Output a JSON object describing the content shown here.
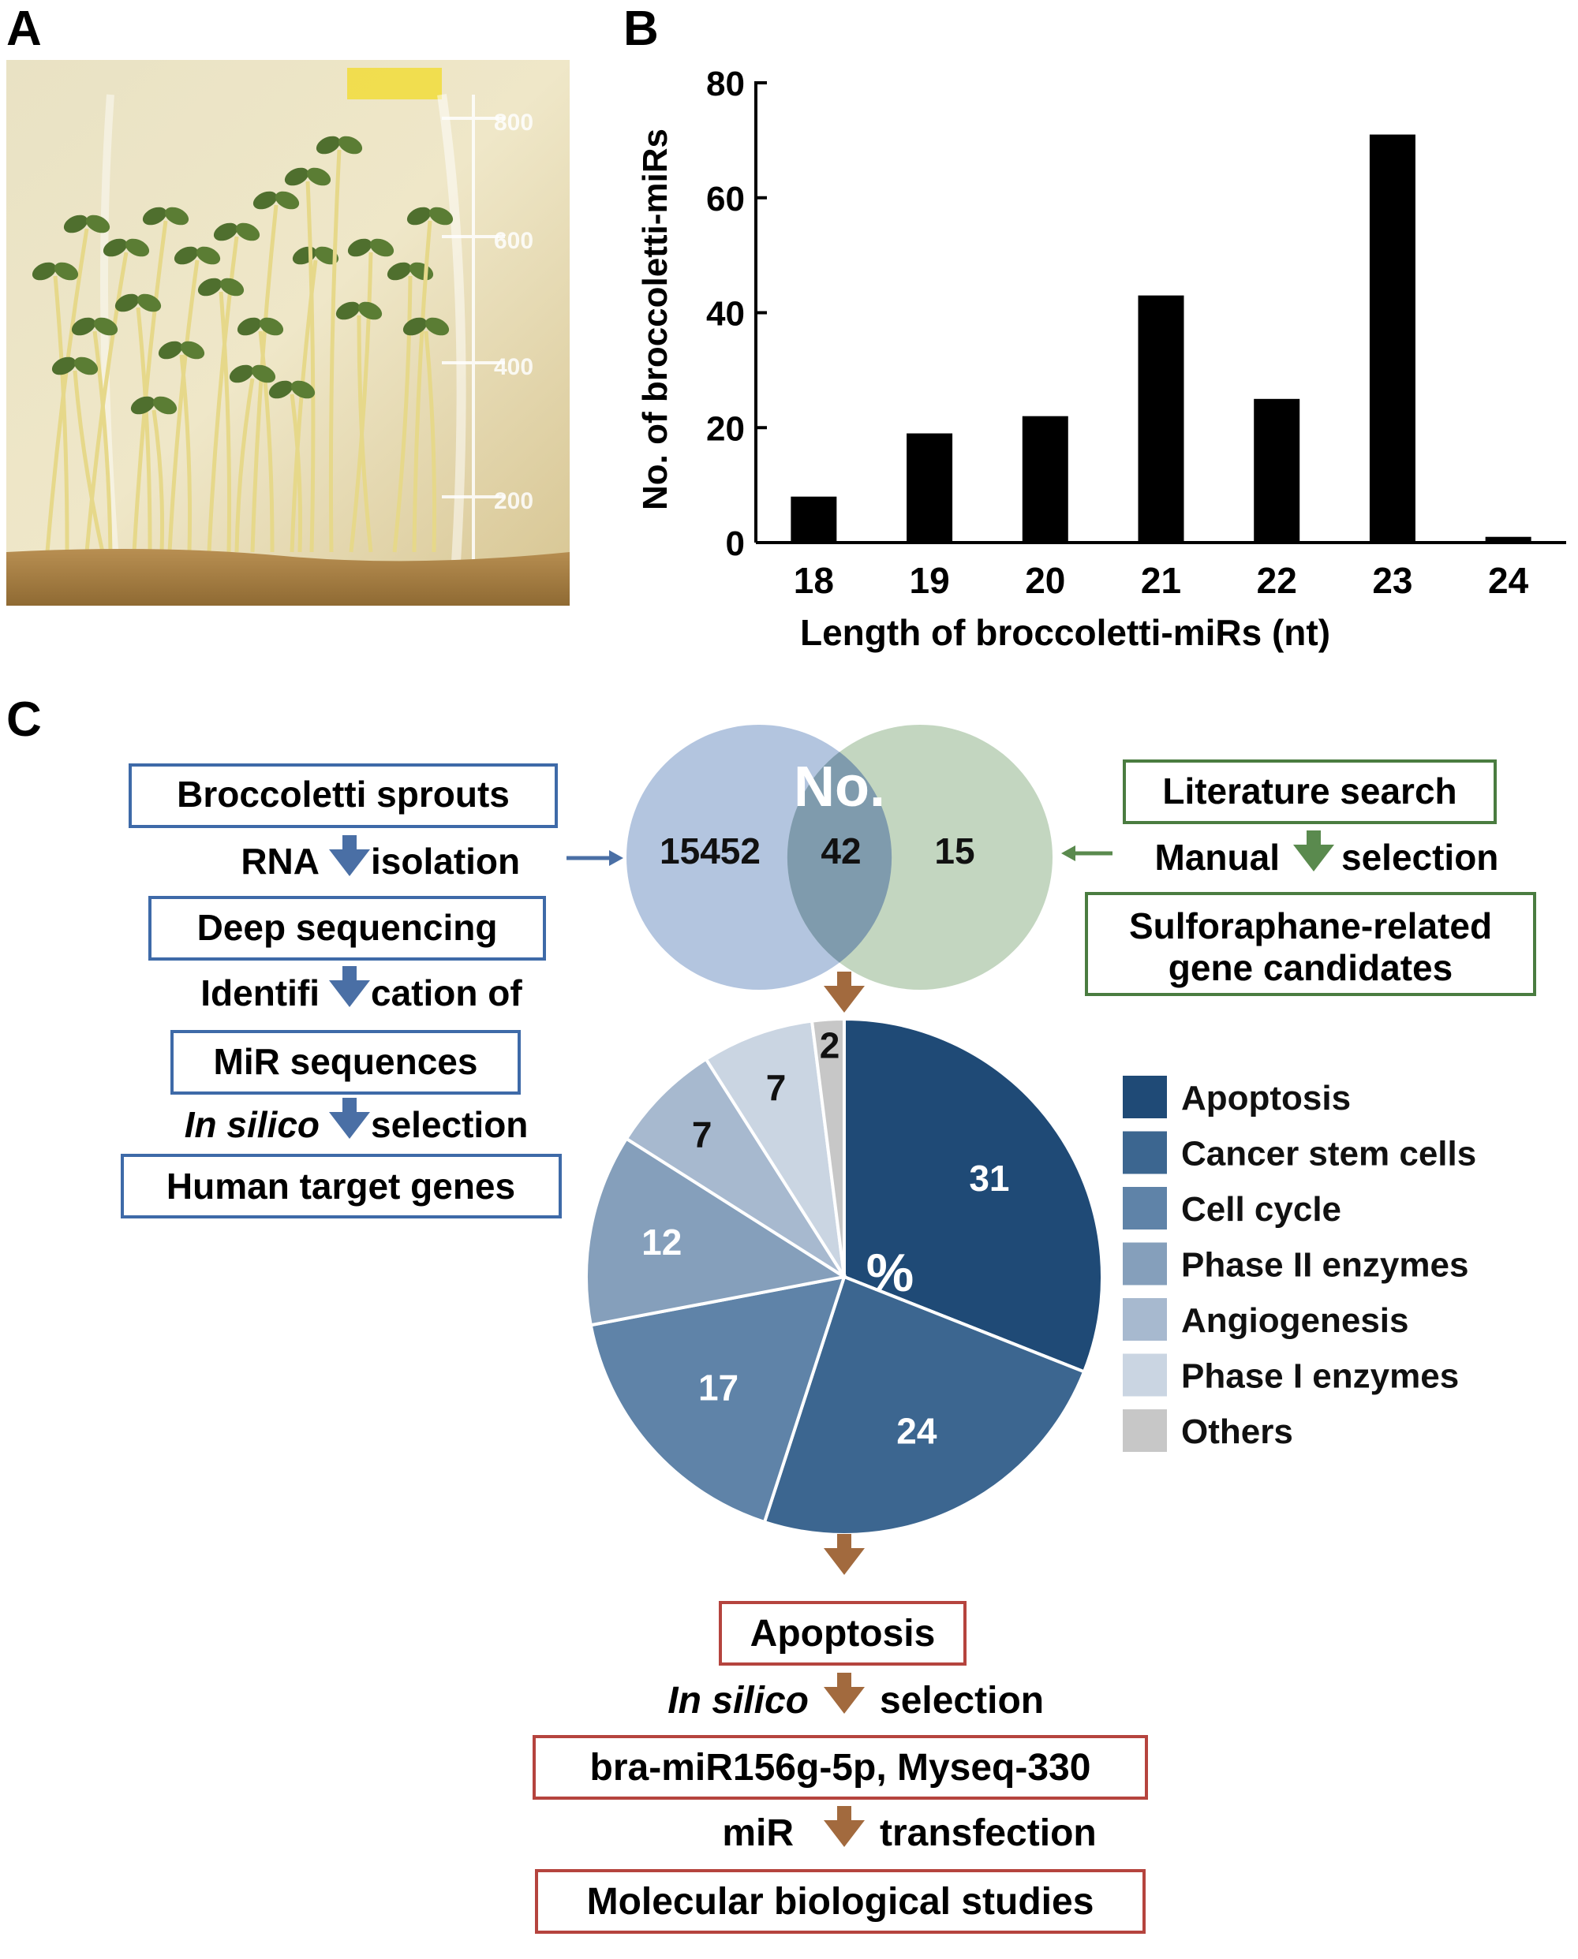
{
  "panels": {
    "A": {
      "label": "A"
    },
    "B": {
      "label": "B"
    },
    "C": {
      "label": "C"
    }
  },
  "chart_data": {
    "type": "bar",
    "categories": [
      "18",
      "19",
      "20",
      "21",
      "22",
      "23",
      "24"
    ],
    "values": [
      8,
      19,
      22,
      43,
      25,
      71,
      1
    ],
    "xlabel": "Length of broccoletti-miRs (nt)",
    "ylabel": "No. of broccoletti-miRs",
    "ylim": [
      0,
      80
    ],
    "yticks": [
      "0",
      "20",
      "40",
      "60",
      "80"
    ],
    "grid": false
  },
  "photo": {
    "beaker_marks": [
      "800",
      "600",
      "400",
      "200"
    ]
  },
  "left_flow": {
    "box1": "Broccoletti sprouts",
    "step1_left": "RNA",
    "step1_right": "isolation",
    "box2": "Deep sequencing",
    "step2_left": "Identifi",
    "step2_right": "cation of",
    "box3": "MiR sequences",
    "step3_left": "In silico",
    "step3_right": "selection",
    "box4": "Human target genes"
  },
  "right_flow": {
    "box1": "Literature search",
    "step1_left": "Manual",
    "step1_right": "selection",
    "box2_line1": "Sulforaphane-related",
    "box2_line2": "gene candidates"
  },
  "venn": {
    "title": "No.",
    "left_only": "15452",
    "overlap": "42",
    "right_only": "15",
    "colors": {
      "left": "#b3c5df",
      "right": "#c3d6c0",
      "overlap": "#7f9bad"
    }
  },
  "pie": {
    "center_label": "%",
    "slices": [
      {
        "name": "Apoptosis",
        "value": 31,
        "label": "31",
        "color": "#1f4a76"
      },
      {
        "name": "Cancer stem cells",
        "value": 24,
        "label": "24",
        "color": "#3c6690"
      },
      {
        "name": "Cell cycle",
        "value": 17,
        "label": "17",
        "color": "#5f83a8"
      },
      {
        "name": "Phase II enzymes",
        "value": 12,
        "label": "12",
        "color": "#859fbb"
      },
      {
        "name": "Angiogenesis",
        "value": 7,
        "label": "7",
        "color": "#a7b9cf"
      },
      {
        "name": "Phase I enzymes",
        "value": 7,
        "label": "7",
        "color": "#cad5e2"
      },
      {
        "name": "Others",
        "value": 2,
        "label": "2",
        "color": "#c7c7c7"
      }
    ]
  },
  "bottom_flow": {
    "box1": "Apoptosis",
    "step1_left": "In silico",
    "step1_right": "selection",
    "box2": "bra-miR156g-5p, Myseq-330",
    "step2_left": "miR",
    "step2_right": "transfection",
    "box3": "Molecular biological studies"
  },
  "colors": {
    "blue_flow": "#3e6aa8",
    "blue_arrow": "#4a6fa5",
    "green_flow": "#4a7c40",
    "green_arrow": "#5a8a4e",
    "red_box": "#b5443e",
    "brown_arrow": "#a26a3e",
    "bar": "#000000"
  }
}
